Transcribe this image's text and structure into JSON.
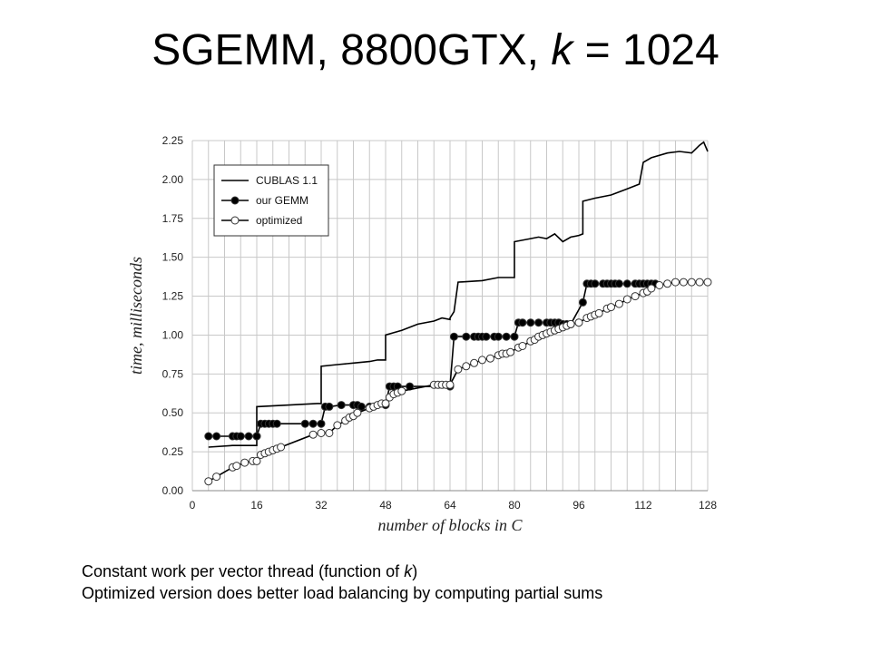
{
  "slide": {
    "title_prefix": "SGEMM, 8800GTX, ",
    "title_var": "k",
    "title_suffix": " = 1024"
  },
  "caption": {
    "line1_prefix": "Constant work per vector thread (function of ",
    "line1_var": "k",
    "line1_suffix": ")",
    "line2": "Optimized version does better load balancing by computing partial sums"
  },
  "chart_data": {
    "type": "line",
    "xlabel": "number of blocks in C",
    "ylabel": "time, milliseconds",
    "xlim": [
      0,
      128
    ],
    "ylim": [
      0,
      2.25
    ],
    "x_ticks": [
      "0",
      "16",
      "32",
      "48",
      "64",
      "80",
      "96",
      "112",
      "128"
    ],
    "y_ticks": [
      "0.00",
      "0.25",
      "0.50",
      "0.75",
      "1.00",
      "1.25",
      "1.50",
      "1.75",
      "2.00",
      "2.25"
    ],
    "grid": true,
    "legend_position": "top-left",
    "series": [
      {
        "name": "CUBLAS 1.1",
        "marker": "none",
        "color": "#000000",
        "points": [
          [
            4,
            0.28
          ],
          [
            10,
            0.29
          ],
          [
            16,
            0.29
          ],
          [
            16,
            0.54
          ],
          [
            24,
            0.55
          ],
          [
            31,
            0.56
          ],
          [
            32,
            0.56
          ],
          [
            32,
            0.8
          ],
          [
            36,
            0.81
          ],
          [
            40,
            0.82
          ],
          [
            44,
            0.83
          ],
          [
            46,
            0.84
          ],
          [
            48,
            0.84
          ],
          [
            48,
            1.0
          ],
          [
            52,
            1.03
          ],
          [
            56,
            1.07
          ],
          [
            60,
            1.09
          ],
          [
            62,
            1.11
          ],
          [
            64,
            1.1
          ],
          [
            64,
            1.11
          ],
          [
            65,
            1.15
          ],
          [
            66,
            1.34
          ],
          [
            72,
            1.35
          ],
          [
            76,
            1.37
          ],
          [
            80,
            1.37
          ],
          [
            80,
            1.6
          ],
          [
            84,
            1.62
          ],
          [
            86,
            1.63
          ],
          [
            88,
            1.62
          ],
          [
            90,
            1.65
          ],
          [
            92,
            1.6
          ],
          [
            94,
            1.63
          ],
          [
            96,
            1.64
          ],
          [
            97,
            1.65
          ],
          [
            97,
            1.86
          ],
          [
            100,
            1.88
          ],
          [
            104,
            1.9
          ],
          [
            106,
            1.92
          ],
          [
            108,
            1.94
          ],
          [
            111,
            1.97
          ],
          [
            112,
            2.11
          ],
          [
            114,
            2.14
          ],
          [
            118,
            2.17
          ],
          [
            121,
            2.18
          ],
          [
            124,
            2.17
          ],
          [
            126,
            2.22
          ],
          [
            127,
            2.24
          ],
          [
            128,
            2.18
          ]
        ]
      },
      {
        "name": "our GEMM",
        "marker": "filled-circle",
        "color": "#000000",
        "points": [
          [
            4,
            0.35
          ],
          [
            6,
            0.35
          ],
          [
            10,
            0.35
          ],
          [
            11,
            0.35
          ],
          [
            12,
            0.35
          ],
          [
            14,
            0.35
          ],
          [
            16,
            0.35
          ],
          [
            16,
            0.35
          ],
          [
            17,
            0.43
          ],
          [
            18,
            0.43
          ],
          [
            19,
            0.43
          ],
          [
            20,
            0.43
          ],
          [
            21,
            0.43
          ],
          [
            28,
            0.43
          ],
          [
            30,
            0.43
          ],
          [
            32,
            0.43
          ],
          [
            33,
            0.54
          ],
          [
            34,
            0.54
          ],
          [
            37,
            0.55
          ],
          [
            40,
            0.55
          ],
          [
            41,
            0.55
          ],
          [
            42,
            0.54
          ],
          [
            44,
            0.54
          ],
          [
            48,
            0.55
          ],
          [
            49,
            0.67
          ],
          [
            50,
            0.67
          ],
          [
            51,
            0.67
          ],
          [
            54,
            0.67
          ],
          [
            64,
            0.67
          ],
          [
            65,
            0.99
          ],
          [
            68,
            0.99
          ],
          [
            70,
            0.99
          ],
          [
            71,
            0.99
          ],
          [
            72,
            0.99
          ],
          [
            73,
            0.99
          ],
          [
            75,
            0.99
          ],
          [
            76,
            0.99
          ],
          [
            78,
            0.99
          ],
          [
            80,
            0.99
          ],
          [
            81,
            1.08
          ],
          [
            82,
            1.08
          ],
          [
            84,
            1.08
          ],
          [
            86,
            1.08
          ],
          [
            88,
            1.08
          ],
          [
            89,
            1.08
          ],
          [
            90,
            1.08
          ],
          [
            91,
            1.08
          ],
          [
            92,
            1.07
          ],
          [
            93,
            1.07
          ],
          [
            94,
            1.07
          ],
          [
            97,
            1.21
          ],
          [
            98,
            1.33
          ],
          [
            99,
            1.33
          ],
          [
            100,
            1.33
          ],
          [
            102,
            1.33
          ],
          [
            103,
            1.33
          ],
          [
            104,
            1.33
          ],
          [
            105,
            1.33
          ],
          [
            106,
            1.33
          ],
          [
            108,
            1.33
          ],
          [
            110,
            1.33
          ],
          [
            111,
            1.33
          ],
          [
            112,
            1.33
          ],
          [
            113,
            1.33
          ],
          [
            114,
            1.33
          ],
          [
            115,
            1.33
          ]
        ]
      },
      {
        "name": "optimized",
        "marker": "open-circle",
        "color": "#000000",
        "points": [
          [
            4,
            0.06
          ],
          [
            6,
            0.09
          ],
          [
            10,
            0.15
          ],
          [
            11,
            0.16
          ],
          [
            13,
            0.18
          ],
          [
            15,
            0.19
          ],
          [
            16,
            0.19
          ],
          [
            17,
            0.23
          ],
          [
            18,
            0.24
          ],
          [
            19,
            0.25
          ],
          [
            20,
            0.26
          ],
          [
            21,
            0.27
          ],
          [
            22,
            0.28
          ],
          [
            30,
            0.36
          ],
          [
            32,
            0.37
          ],
          [
            34,
            0.37
          ],
          [
            36,
            0.42
          ],
          [
            38,
            0.45
          ],
          [
            39,
            0.47
          ],
          [
            40,
            0.48
          ],
          [
            41,
            0.5
          ],
          [
            44,
            0.53
          ],
          [
            45,
            0.54
          ],
          [
            46,
            0.55
          ],
          [
            47,
            0.56
          ],
          [
            48,
            0.56
          ],
          [
            49,
            0.6
          ],
          [
            50,
            0.62
          ],
          [
            51,
            0.63
          ],
          [
            52,
            0.64
          ],
          [
            60,
            0.68
          ],
          [
            61,
            0.68
          ],
          [
            62,
            0.68
          ],
          [
            63,
            0.68
          ],
          [
            64,
            0.68
          ],
          [
            66,
            0.78
          ],
          [
            68,
            0.8
          ],
          [
            70,
            0.82
          ],
          [
            72,
            0.84
          ],
          [
            74,
            0.85
          ],
          [
            76,
            0.87
          ],
          [
            77,
            0.88
          ],
          [
            78,
            0.88
          ],
          [
            79,
            0.89
          ],
          [
            81,
            0.92
          ],
          [
            82,
            0.93
          ],
          [
            84,
            0.96
          ],
          [
            85,
            0.97
          ],
          [
            86,
            0.99
          ],
          [
            87,
            1.0
          ],
          [
            88,
            1.01
          ],
          [
            89,
            1.02
          ],
          [
            90,
            1.03
          ],
          [
            91,
            1.04
          ],
          [
            92,
            1.05
          ],
          [
            93,
            1.06
          ],
          [
            94,
            1.07
          ],
          [
            96,
            1.08
          ],
          [
            98,
            1.11
          ],
          [
            99,
            1.12
          ],
          [
            100,
            1.13
          ],
          [
            101,
            1.14
          ],
          [
            103,
            1.17
          ],
          [
            104,
            1.18
          ],
          [
            106,
            1.2
          ],
          [
            108,
            1.23
          ],
          [
            110,
            1.25
          ],
          [
            112,
            1.27
          ],
          [
            113,
            1.28
          ],
          [
            114,
            1.3
          ],
          [
            116,
            1.32
          ],
          [
            118,
            1.33
          ],
          [
            120,
            1.34
          ],
          [
            122,
            1.34
          ],
          [
            124,
            1.34
          ],
          [
            126,
            1.34
          ],
          [
            128,
            1.34
          ]
        ]
      }
    ]
  }
}
